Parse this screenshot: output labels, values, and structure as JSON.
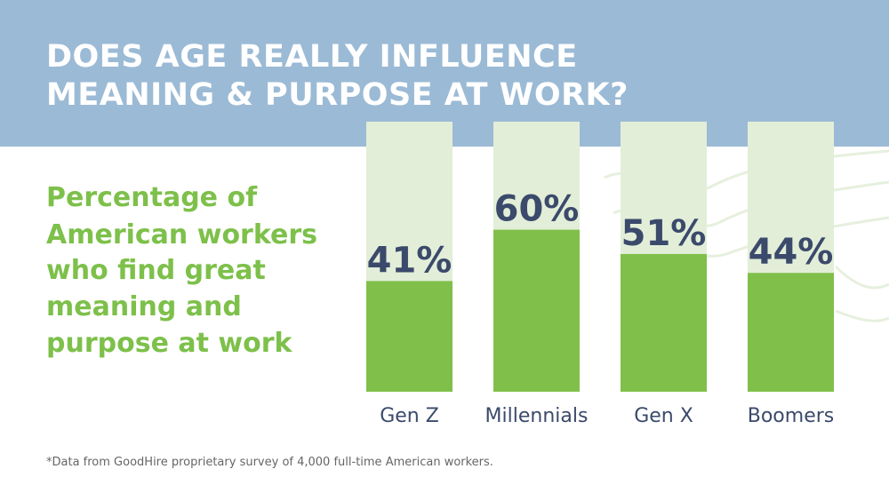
{
  "chart_data": {
    "type": "bar",
    "title": [
      "DOES AGE REALLY INFLUENCE",
      "MEANING & PURPOSE AT WORK?"
    ],
    "subtitle": [
      "Percentage of",
      "American workers",
      "who find great",
      "meaning and",
      "purpose at work"
    ],
    "categories": [
      "Gen Z",
      "Millennials",
      "Gen X",
      "Boomers"
    ],
    "values": [
      41,
      60,
      51,
      44
    ],
    "value_labels": [
      "41%",
      "60%",
      "51%",
      "44%"
    ],
    "color": "#80c04a",
    "track_color": "#e2eed8",
    "ylim": [
      0,
      100
    ],
    "footnote": "*Data from GoodHire proprietary survey of 4,000 full-time American workers."
  }
}
